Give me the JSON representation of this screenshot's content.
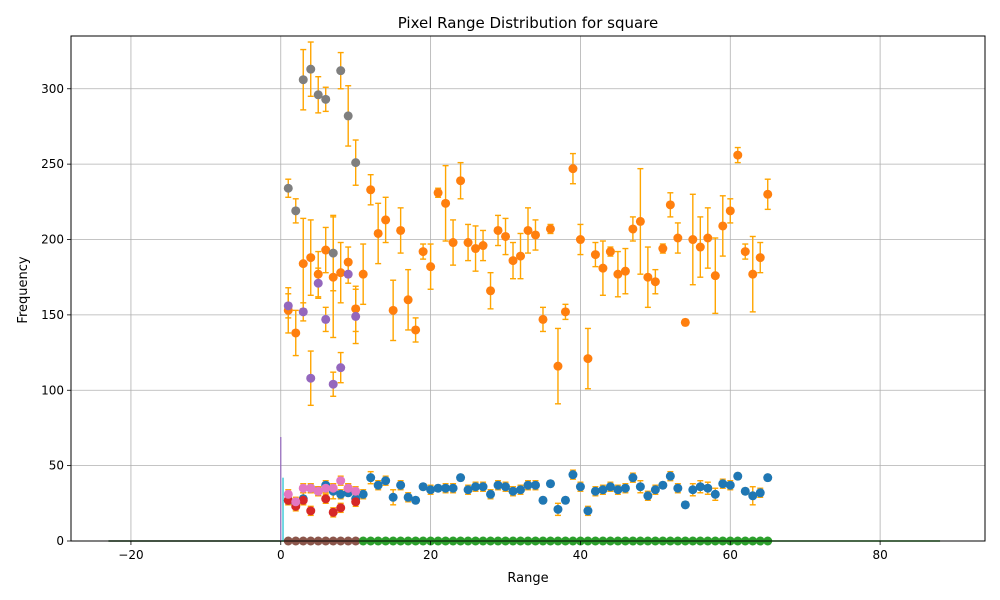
{
  "chart_data": {
    "type": "scatter",
    "title": "Pixel Range Distribution for square",
    "xlabel": "Range",
    "ylabel": "Frequency",
    "xlim": [
      -28,
      94
    ],
    "ylim": [
      0,
      335
    ],
    "xticks": [
      -20,
      0,
      20,
      40,
      60,
      80
    ],
    "yticks": [
      0,
      50,
      100,
      150,
      200,
      250,
      300
    ],
    "grid": true,
    "error_bar_color": "#ffa500",
    "baseline_lines": [
      {
        "color": "#2ca02c",
        "x": [
          -23,
          88
        ],
        "y": [
          0,
          0
        ]
      },
      {
        "color": "#7f7f7f",
        "x": [
          -23,
          0
        ],
        "y": [
          0,
          0
        ]
      }
    ],
    "spike": {
      "color": "#9467bd",
      "x": 0,
      "y": [
        0,
        69
      ]
    },
    "spike2": {
      "color": "#17becf",
      "x": 0.3,
      "y": [
        0,
        42
      ]
    },
    "series": [
      {
        "color": "#ff7f0e",
        "x": [
          1,
          2,
          3,
          4,
          5,
          6,
          7,
          8,
          9,
          10,
          11,
          12,
          13,
          14,
          15,
          16,
          17,
          18,
          19,
          20,
          21,
          22,
          23,
          24,
          25,
          26,
          27,
          28,
          29,
          30,
          31,
          32,
          33,
          34,
          35,
          36,
          37,
          38,
          39,
          40,
          41,
          42,
          43,
          44,
          45,
          46,
          47,
          48,
          49,
          50,
          51,
          52,
          53,
          54,
          55,
          56,
          57,
          58,
          59,
          60,
          61,
          62,
          63,
          64,
          65
        ],
        "y": [
          153,
          138,
          184,
          188,
          177,
          193,
          175,
          178,
          185,
          154,
          177,
          233,
          204,
          213,
          153,
          206,
          160,
          140,
          192,
          182,
          231,
          224,
          198,
          239,
          198,
          194,
          196,
          166,
          206,
          202,
          186,
          189,
          206,
          203,
          147,
          207,
          116,
          152,
          247,
          200,
          121,
          190,
          181,
          192,
          177,
          179,
          207,
          212,
          175,
          172,
          194,
          223,
          201,
          145,
          200,
          195,
          201,
          176,
          209,
          219,
          256,
          192,
          177,
          188,
          230
        ],
        "err": [
          15,
          15,
          30,
          25,
          15,
          15,
          40,
          20,
          10,
          15,
          20,
          10,
          20,
          15,
          20,
          15,
          20,
          8,
          5,
          15,
          3,
          25,
          15,
          12,
          12,
          15,
          10,
          12,
          10,
          12,
          12,
          15,
          15,
          10,
          8,
          3,
          25,
          5,
          10,
          10,
          20,
          8,
          18,
          3,
          15,
          15,
          8,
          35,
          20,
          8,
          3,
          8,
          10,
          2,
          30,
          20,
          20,
          25,
          20,
          8,
          5,
          5,
          25,
          10,
          10
        ]
      },
      {
        "color": "#7f7f7f",
        "x": [
          1,
          2,
          3,
          4,
          5,
          6,
          7,
          8,
          9,
          10
        ],
        "y": [
          234,
          219,
          306,
          313,
          296,
          293,
          191,
          312,
          282,
          251
        ],
        "err": [
          6,
          8,
          20,
          18,
          12,
          8,
          25,
          12,
          20,
          15
        ]
      },
      {
        "color": "#9467bd",
        "x": [
          1,
          3,
          4,
          5,
          6,
          7,
          8,
          9,
          10
        ],
        "y": [
          156,
          152,
          108,
          171,
          147,
          104,
          115,
          177,
          149
        ],
        "err": [
          8,
          6,
          18,
          10,
          8,
          8,
          10,
          6,
          18
        ]
      },
      {
        "color": "#1f77b4",
        "x": [
          1,
          2,
          3,
          4,
          5,
          6,
          7,
          8,
          9,
          10,
          11,
          12,
          13,
          14,
          15,
          16,
          17,
          18,
          19,
          20,
          21,
          22,
          23,
          24,
          25,
          26,
          27,
          28,
          29,
          30,
          31,
          32,
          33,
          34,
          35,
          36,
          37,
          38,
          39,
          40,
          41,
          42,
          43,
          44,
          45,
          46,
          47,
          48,
          49,
          50,
          51,
          52,
          53,
          54,
          55,
          56,
          57,
          58,
          59,
          60,
          61,
          62,
          63,
          64,
          65
        ],
        "y": [
          27,
          25,
          28,
          35,
          33,
          37,
          33,
          31,
          32,
          28,
          31,
          42,
          37,
          40,
          29,
          37,
          29,
          27,
          36,
          34,
          35,
          35,
          35,
          42,
          34,
          36,
          36,
          31,
          37,
          36,
          33,
          34,
          37,
          37,
          27,
          38,
          21,
          27,
          44,
          36,
          20,
          33,
          34,
          36,
          34,
          35,
          42,
          36,
          30,
          34,
          37,
          43,
          35,
          24,
          34,
          36,
          35,
          31,
          38,
          37,
          43,
          33,
          30,
          32,
          42
        ],
        "err": [
          3,
          2,
          4,
          3,
          3,
          3,
          5,
          3,
          2,
          3,
          3,
          4,
          3,
          3,
          5,
          3,
          3,
          2,
          2,
          3,
          2,
          3,
          3,
          2,
          3,
          3,
          3,
          3,
          3,
          3,
          3,
          3,
          3,
          3,
          2,
          2,
          4,
          2,
          3,
          3,
          3,
          3,
          3,
          3,
          3,
          3,
          3,
          4,
          3,
          3,
          2,
          3,
          3,
          2,
          4,
          4,
          4,
          4,
          3,
          3,
          2,
          2,
          6,
          3,
          2
        ]
      },
      {
        "color": "#d62728",
        "x": [
          1,
          2,
          3,
          4,
          5,
          6,
          7,
          8,
          9,
          10
        ],
        "y": [
          27,
          23,
          27,
          20,
          33,
          28,
          19,
          22,
          35,
          26
        ],
        "err": [
          3,
          3,
          3,
          3,
          3,
          3,
          3,
          3,
          3,
          3
        ]
      },
      {
        "color": "#e377c2",
        "x": [
          1,
          2,
          3,
          4,
          5,
          6,
          7,
          8,
          9,
          10
        ],
        "y": [
          31,
          26,
          35,
          35,
          33,
          35,
          35,
          40,
          35,
          33
        ],
        "err": [
          3,
          3,
          3,
          3,
          3,
          3,
          3,
          3,
          3,
          3
        ]
      },
      {
        "color": "#8c564b",
        "x": [
          1,
          2,
          3,
          4,
          5,
          6,
          7,
          8,
          9,
          10
        ],
        "y": [
          0,
          0,
          0,
          0,
          0,
          0,
          0,
          0,
          0,
          0
        ],
        "err": []
      },
      {
        "color": "#2ca02c",
        "x": [
          11,
          12,
          13,
          14,
          15,
          16,
          17,
          18,
          19,
          20,
          21,
          22,
          23,
          24,
          25,
          26,
          27,
          28,
          29,
          30,
          31,
          32,
          33,
          34,
          35,
          36,
          37,
          38,
          39,
          40,
          41,
          42,
          43,
          44,
          45,
          46,
          47,
          48,
          49,
          50,
          51,
          52,
          53,
          54,
          55,
          56,
          57,
          58,
          59,
          60,
          61,
          62,
          63,
          64,
          65
        ],
        "y": [
          0,
          0,
          0,
          0,
          0,
          0,
          0,
          0,
          0,
          0,
          0,
          0,
          0,
          0,
          0,
          0,
          0,
          0,
          0,
          0,
          0,
          0,
          0,
          0,
          0,
          0,
          0,
          0,
          0,
          0,
          0,
          0,
          0,
          0,
          0,
          0,
          0,
          0,
          0,
          0,
          0,
          0,
          0,
          0,
          0,
          0,
          0,
          0,
          0,
          0,
          0,
          0,
          0,
          0,
          0
        ],
        "err": []
      }
    ]
  }
}
